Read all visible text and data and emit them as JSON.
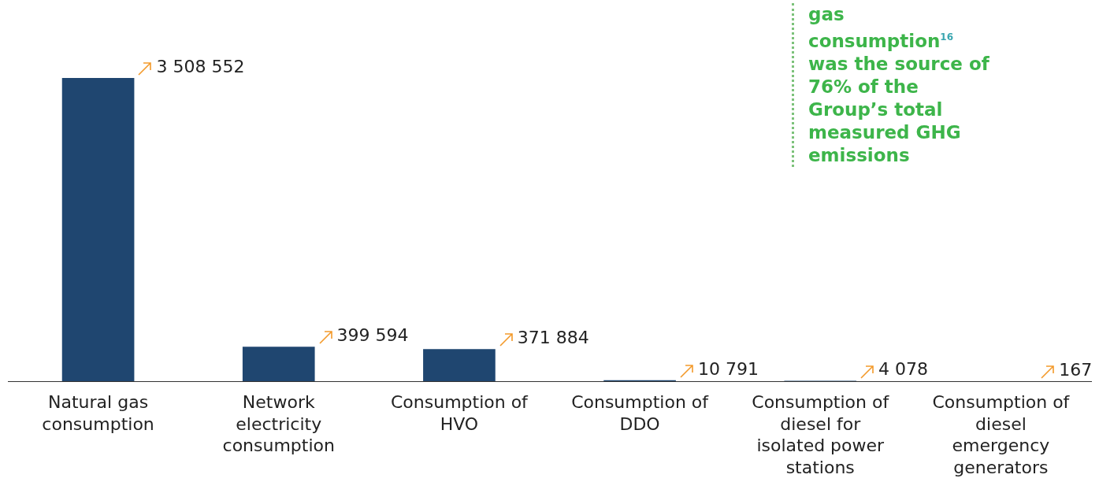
{
  "chart_data": {
    "type": "bar",
    "categories": [
      "Natural gas consumption",
      "Network electricity consumption",
      "Consumption of HVO",
      "Consumption of DDO",
      "Consumption of diesel for isolated power stations",
      "Consumption of diesel emergency generators"
    ],
    "values": [
      3508552,
      399594,
      371884,
      10791,
      4078,
      167
    ],
    "color": "#1f4670",
    "value_labels": [
      "3 508 552",
      "399 594",
      "371 884",
      "10 791",
      "4 078",
      "167"
    ],
    "grid": false,
    "legend": false,
    "annotations": [
      "gas consumption$^{16}$ was the source of 76% of the Group’s total measured GHG emissions"
    ]
  }
}
